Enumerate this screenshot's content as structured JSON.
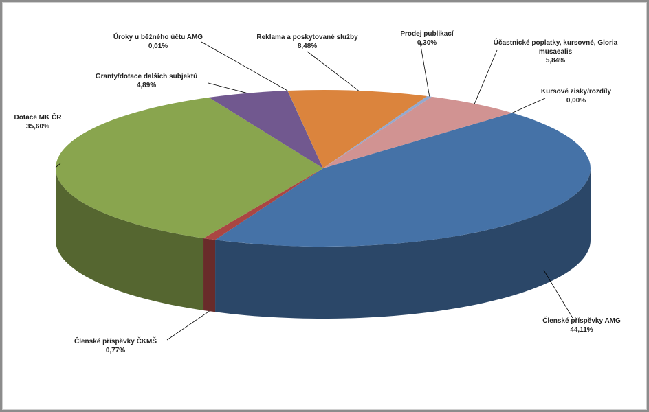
{
  "chart_data": {
    "type": "pie",
    "categories": [
      "Členské příspěvky AMG",
      "Členské příspěvky ČKMŠ",
      "Dotace MK ČR",
      "Granty/dotace dalších subjektů",
      "Úroky u běžného účtu AMG",
      "Reklama a poskytované služby",
      "Prodej publikací",
      "Účastnické poplatky, kursovné, Gloria musaealis",
      "Kursové zisky/rozdíly"
    ],
    "values": [
      44.11,
      0.77,
      35.6,
      4.89,
      0.01,
      8.48,
      0.3,
      5.84,
      0.0
    ],
    "value_labels": [
      "44,11%",
      "0,77%",
      "35,60%",
      "4,89%",
      "0,01%",
      "8,48%",
      "0,30%",
      "5,84%",
      "0,00%"
    ],
    "colors": [
      "#4572a7",
      "#aa4643",
      "#89a54e",
      "#71588f",
      "#4198af",
      "#db843d",
      "#93a9cf",
      "#d19392",
      "#b9cd96"
    ]
  }
}
